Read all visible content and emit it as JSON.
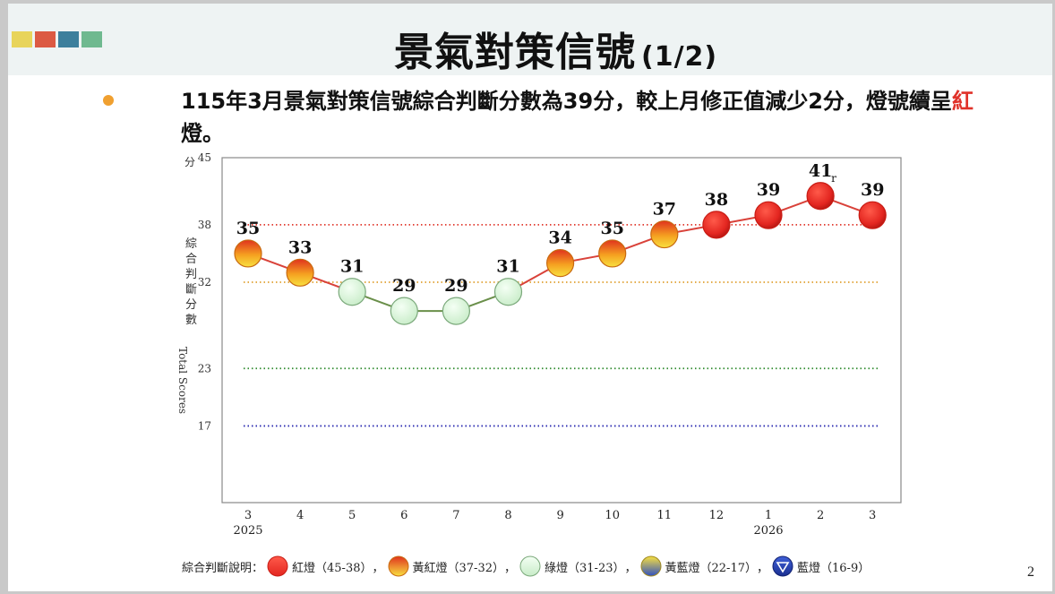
{
  "page": {
    "title": "景氣對策信號",
    "title_sub": "(1/2)",
    "summary_part1": "115年3月景氣對策信號綜合判斷分數為39分，較上月修正值減少2分，燈號續呈",
    "summary_red": "紅",
    "summary_part2": "燈。",
    "page_number": "2",
    "header_squares": [
      "#e8d45b",
      "#dc5a43",
      "#3d7f9c",
      "#6fb98f"
    ],
    "bullet_color": "#f0a030"
  },
  "chart_data": {
    "type": "line",
    "categories": [
      "3",
      "4",
      "5",
      "6",
      "7",
      "8",
      "9",
      "10",
      "11",
      "12",
      "1",
      "2",
      "3"
    ],
    "year_labels": [
      {
        "index": 0,
        "label": "2025"
      },
      {
        "index": 10,
        "label": "2026"
      }
    ],
    "values": [
      35,
      33,
      31,
      29,
      29,
      31,
      34,
      35,
      37,
      38,
      39,
      41,
      39
    ],
    "point_labels": [
      "35",
      "33",
      "31",
      "29",
      "29",
      "31",
      "34",
      "35",
      "37",
      "38",
      "39",
      "41",
      "39"
    ],
    "revised_marker": {
      "index": 11,
      "text": "r"
    },
    "ylim": [
      9,
      45
    ],
    "y_ticks": [
      45,
      38,
      32,
      23,
      17
    ],
    "y_unit": "分",
    "ylabel_cjk": "綜合判斷分數",
    "ylabel_en": "Total Scores",
    "thresholds": [
      {
        "value": 38,
        "color": "#e03a2f"
      },
      {
        "value": 32,
        "color": "#e0a030"
      },
      {
        "value": 23,
        "color": "#2e8b2e"
      },
      {
        "value": 17,
        "color": "#2a2ab0"
      }
    ],
    "signal_colors": {
      "red": "#e32620",
      "yellow_red": "#f08a24",
      "green": "#d8f2d8",
      "yellow_blue": "#f5d860",
      "blue": "#1f3fa8"
    },
    "legend": {
      "prefix": "綜合判斷說明：",
      "items": [
        {
          "key": "red",
          "label": "紅燈（45-38）",
          "sep": "，"
        },
        {
          "key": "yellow_red",
          "label": "黃紅燈（37-32）",
          "sep": "，"
        },
        {
          "key": "green",
          "label": "綠燈（31-23）",
          "sep": "，"
        },
        {
          "key": "yellow_blue",
          "label": "黃藍燈（22-17）",
          "sep": "，"
        },
        {
          "key": "blue",
          "label": "藍燈（16-9）",
          "sep": ""
        }
      ]
    }
  }
}
